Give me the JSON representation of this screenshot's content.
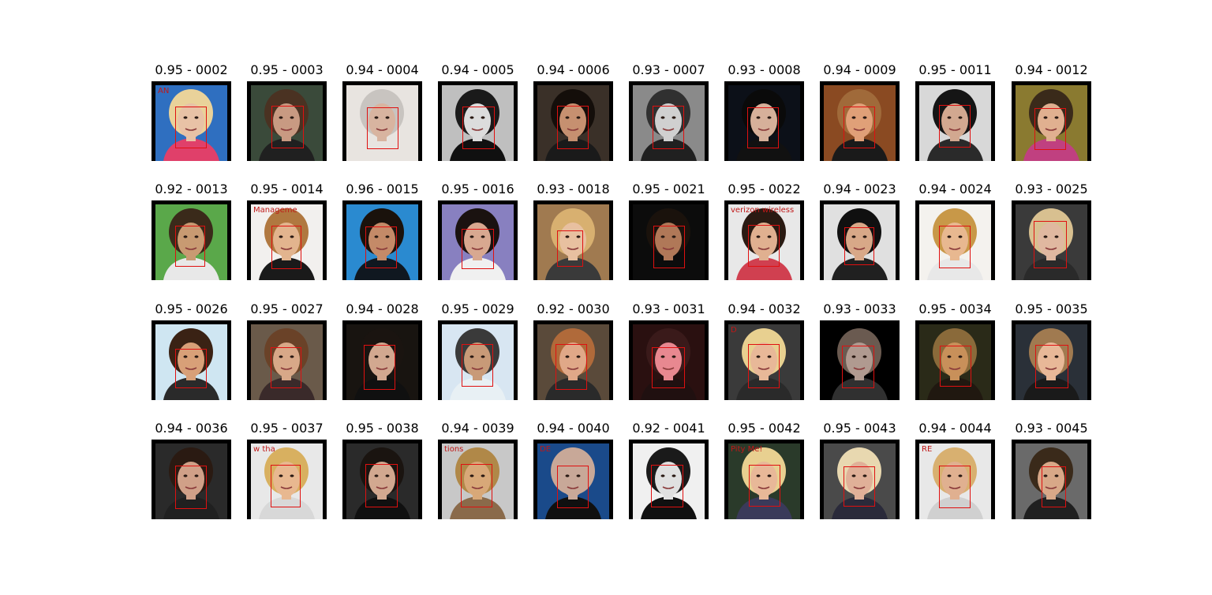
{
  "figure": {
    "items": [
      {
        "score": "0.95",
        "id": "0002",
        "bg": "#2f6fc0",
        "skin": "#e8c2a6",
        "hair": "#e9d29a",
        "cloth": "#e0406a",
        "text": "AN"
      },
      {
        "score": "0.95",
        "id": "0003",
        "bg": "#3a4a3a",
        "skin": "#c89a82",
        "hair": "#4a3222",
        "cloth": "#202020",
        "text": ""
      },
      {
        "score": "0.94",
        "id": "0004",
        "bg": "#e8e4e0",
        "skin": "#d8b4a0",
        "hair": "#c8c4c0",
        "cloth": "#e8e4e0",
        "text": ""
      },
      {
        "score": "0.94",
        "id": "0005",
        "bg": "#bfbfbf",
        "skin": "#dcdcdc",
        "hair": "#1a1a1a",
        "cloth": "#101010",
        "text": ""
      },
      {
        "score": "0.94",
        "id": "0006",
        "bg": "#3a3028",
        "skin": "#c69070",
        "hair": "#140e0a",
        "cloth": "#1a1a1a",
        "text": ""
      },
      {
        "score": "0.93",
        "id": "0007",
        "bg": "#8a8a8a",
        "skin": "#d0d0d0",
        "hair": "#303030",
        "cloth": "#202020",
        "text": ""
      },
      {
        "score": "0.93",
        "id": "0008",
        "bg": "#0c1018",
        "skin": "#d6b09a",
        "hair": "#0a0a0a",
        "cloth": "#111111",
        "text": ""
      },
      {
        "score": "0.94",
        "id": "0009",
        "bg": "#8a4a22",
        "skin": "#e0a078",
        "hair": "#a06a3a",
        "cloth": "#1a1a1a",
        "text": ""
      },
      {
        "score": "0.95",
        "id": "0011",
        "bg": "#d8d8d8",
        "skin": "#d2a890",
        "hair": "#151515",
        "cloth": "#2a2a2a",
        "text": ""
      },
      {
        "score": "0.94",
        "id": "0012",
        "bg": "#8a7a30",
        "skin": "#e0b090",
        "hair": "#3a2a1a",
        "cloth": "#c04080",
        "text": ""
      },
      {
        "score": "0.92",
        "id": "0013",
        "bg": "#5aa84a",
        "skin": "#c89a72",
        "hair": "#3a2a1a",
        "cloth": "#e8e8e8",
        "text": ""
      },
      {
        "score": "0.95",
        "id": "0014",
        "bg": "#f2f0ee",
        "skin": "#e2b48e",
        "hair": "#b07840",
        "cloth": "#1a1a1a",
        "text": "Manageme"
      },
      {
        "score": "0.96",
        "id": "0015",
        "bg": "#2a8ad0",
        "skin": "#c48a68",
        "hair": "#1a120c",
        "cloth": "#101820",
        "text": ""
      },
      {
        "score": "0.95",
        "id": "0016",
        "bg": "#8880c0",
        "skin": "#d8a890",
        "hair": "#1a1210",
        "cloth": "#f0f0f0",
        "text": ""
      },
      {
        "score": "0.93",
        "id": "0018",
        "bg": "#a07a50",
        "skin": "#e8c0a0",
        "hair": "#d8b070",
        "cloth": "#3a3a3a",
        "text": ""
      },
      {
        "score": "0.95",
        "id": "0021",
        "bg": "#0c0c0c",
        "skin": "#b07858",
        "hair": "#1a120c",
        "cloth": "#0c0c0c",
        "text": ""
      },
      {
        "score": "0.95",
        "id": "0022",
        "bg": "#e8e8e8",
        "skin": "#e0b090",
        "hair": "#2a1a12",
        "cloth": "#d04050",
        "text": "verizon wireless"
      },
      {
        "score": "0.94",
        "id": "0023",
        "bg": "#e0e0e0",
        "skin": "#d8a888",
        "hair": "#101010",
        "cloth": "#202020",
        "text": ""
      },
      {
        "score": "0.94",
        "id": "0024",
        "bg": "#f4f2ee",
        "skin": "#e8b890",
        "hair": "#c89848",
        "cloth": "#e8e8e8",
        "text": ""
      },
      {
        "score": "0.93",
        "id": "0025",
        "bg": "#3a3a3a",
        "skin": "#e0b8a0",
        "hair": "#d8c090",
        "cloth": "#2a2a2a",
        "text": ""
      },
      {
        "score": "0.95",
        "id": "0026",
        "bg": "#cfe6f2",
        "skin": "#d8a078",
        "hair": "#3a2214",
        "cloth": "#2a2a2a",
        "text": ""
      },
      {
        "score": "0.95",
        "id": "0027",
        "bg": "#6a5a4a",
        "skin": "#d8a888",
        "hair": "#6a4228",
        "cloth": "#3a2a2a",
        "text": ""
      },
      {
        "score": "0.94",
        "id": "0028",
        "bg": "#181410",
        "skin": "#d2a890",
        "hair": "#1a1410",
        "cloth": "#101010",
        "text": ""
      },
      {
        "score": "0.95",
        "id": "0029",
        "bg": "#d8e6f2",
        "skin": "#c89a78",
        "hair": "#3a3a3a",
        "cloth": "#e8f0f4",
        "text": ""
      },
      {
        "score": "0.92",
        "id": "0030",
        "bg": "#5a4a3a",
        "skin": "#e0a888",
        "hair": "#b06a3a",
        "cloth": "#2a2a2a",
        "text": ""
      },
      {
        "score": "0.93",
        "id": "0031",
        "bg": "#2a1010",
        "skin": "#e88890",
        "hair": "#3a1a1a",
        "cloth": "#201010",
        "text": ""
      },
      {
        "score": "0.94",
        "id": "0032",
        "bg": "#3a3a3a",
        "skin": "#e8b898",
        "hair": "#e8d090",
        "cloth": "#2a2a2a",
        "text": "D"
      },
      {
        "score": "0.93",
        "id": "0033",
        "bg": "#000000",
        "skin": "#b09a90",
        "hair": "#6a5a50",
        "cloth": "#303030",
        "text": ""
      },
      {
        "score": "0.95",
        "id": "0034",
        "bg": "#2a2a18",
        "skin": "#c8905a",
        "hair": "#8a6a3a",
        "cloth": "#201810",
        "text": ""
      },
      {
        "score": "0.95",
        "id": "0035",
        "bg": "#2a3038",
        "skin": "#e8b898",
        "hair": "#a07a50",
        "cloth": "#1a1a1a",
        "text": ""
      },
      {
        "score": "0.94",
        "id": "0036",
        "bg": "#2a2a2a",
        "skin": "#d0a088",
        "hair": "#2a1a12",
        "cloth": "#202020",
        "text": ""
      },
      {
        "score": "0.95",
        "id": "0037",
        "bg": "#e8e8e8",
        "skin": "#e8b890",
        "hair": "#d8b060",
        "cloth": "#d8d8d8",
        "text": "w   tha"
      },
      {
        "score": "0.95",
        "id": "0038",
        "bg": "#2a2a2a",
        "skin": "#d2a890",
        "hair": "#1a1410",
        "cloth": "#101010",
        "text": ""
      },
      {
        "score": "0.94",
        "id": "0039",
        "bg": "#c8c8c8",
        "skin": "#d8a878",
        "hair": "#b08848",
        "cloth": "#8a6a4a",
        "text": "tions"
      },
      {
        "score": "0.94",
        "id": "0040",
        "bg": "#1a4a8a",
        "skin": "#c8a898",
        "hair": "#c8a898",
        "cloth": "#101010",
        "text": "DE"
      },
      {
        "score": "0.92",
        "id": "0041",
        "bg": "#f0f0f0",
        "skin": "#e0e0e0",
        "hair": "#1a1a1a",
        "cloth": "#101010",
        "text": ""
      },
      {
        "score": "0.95",
        "id": "0042",
        "bg": "#2a3a2a",
        "skin": "#e8b898",
        "hair": "#e8d090",
        "cloth": "#3a3a5a",
        "text": "Pity Me!"
      },
      {
        "score": "0.95",
        "id": "0043",
        "bg": "#4a4a4a",
        "skin": "#e0b098",
        "hair": "#e8d8b0",
        "cloth": "#2a2a3a",
        "text": ""
      },
      {
        "score": "0.94",
        "id": "0044",
        "bg": "#e8e8e8",
        "skin": "#e0b090",
        "hair": "#d8b070",
        "cloth": "#d0d0d0",
        "text": "RE"
      },
      {
        "score": "0.93",
        "id": "0045",
        "bg": "#6a6a6a",
        "skin": "#d8a888",
        "hair": "#3a2a1a",
        "cloth": "#202020",
        "text": ""
      }
    ]
  }
}
